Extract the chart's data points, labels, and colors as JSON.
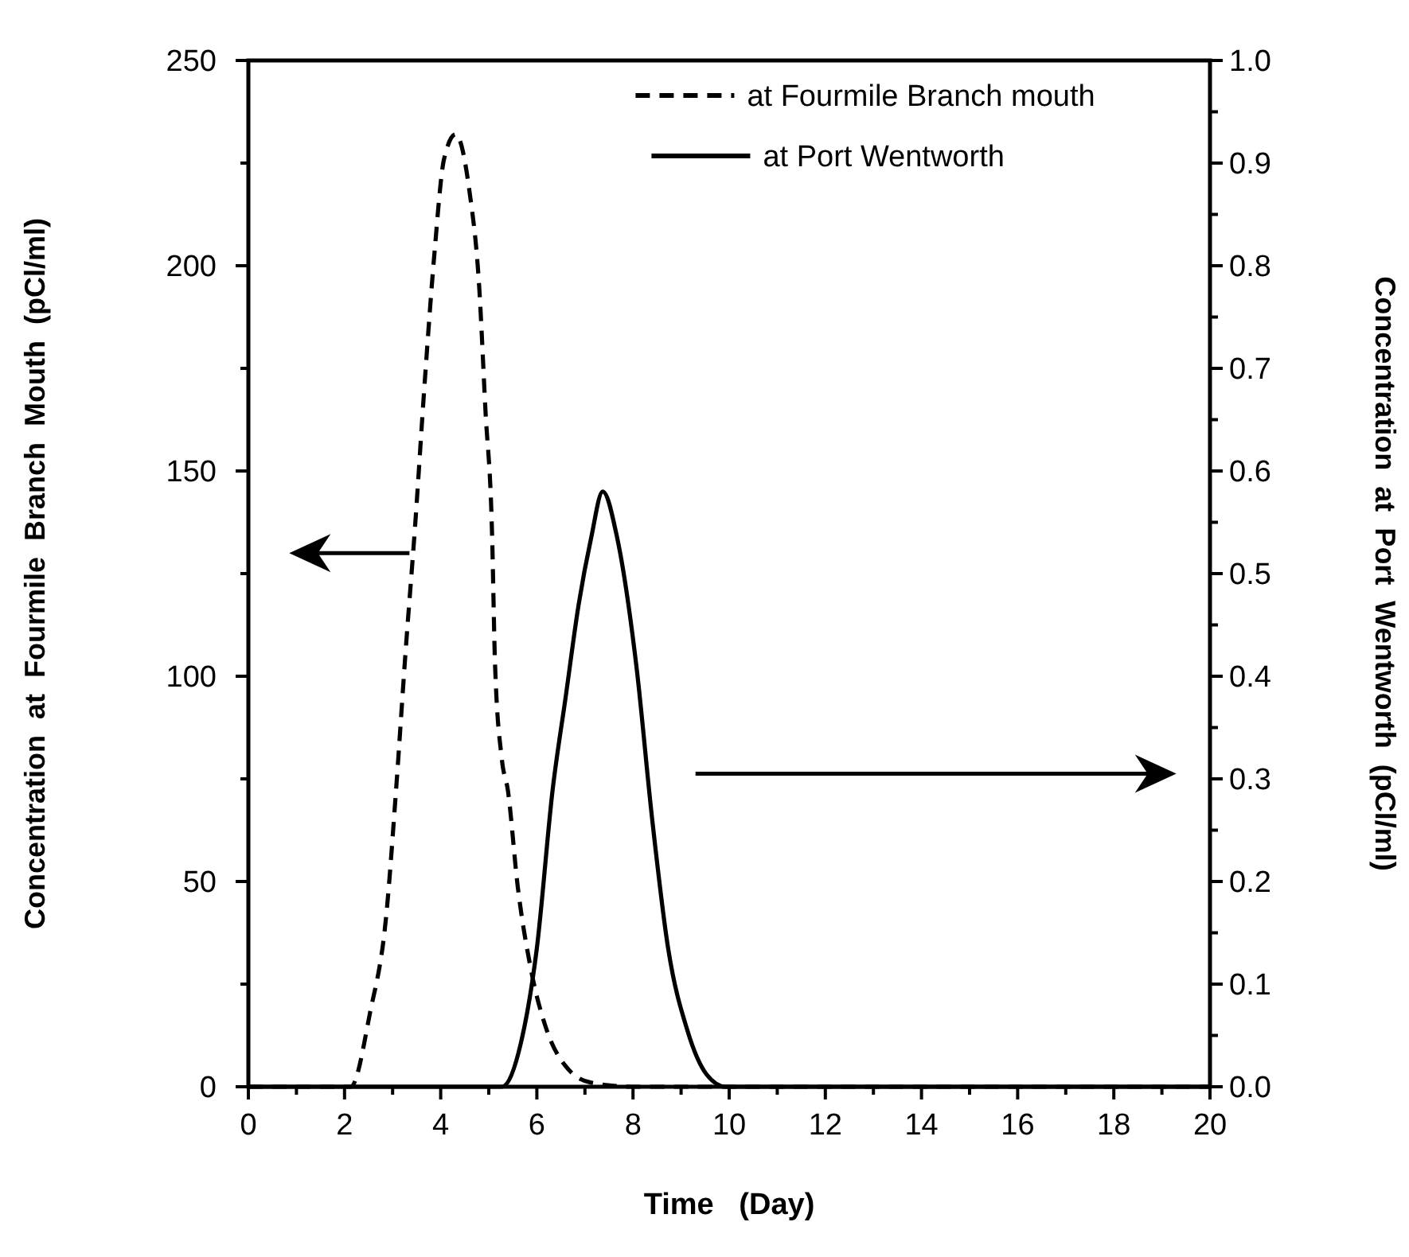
{
  "chart_data": {
    "type": "line",
    "xlabel": "Time   (Day)",
    "ylabel": "Concentration  at  Fourmile  Branch  Mouth  (pCl/ml)",
    "y2label": "Concentration  at  Port  Wentworth  (pCl/ml)",
    "xlim": [
      0,
      20
    ],
    "xticks": [
      0,
      {
        "value": 1,
        "label": null
      },
      2,
      {
        "value": 3,
        "label": null
      },
      4,
      {
        "value": 5,
        "label": null
      },
      6,
      {
        "value": 7,
        "label": null
      },
      8,
      {
        "value": 9,
        "label": null
      },
      10,
      {
        "value": 11,
        "label": null
      },
      12,
      {
        "value": 13,
        "label": null
      },
      14,
      {
        "value": 15,
        "label": null
      },
      16,
      {
        "value": 17,
        "label": null
      },
      18,
      {
        "value": 19,
        "label": null
      },
      20
    ],
    "ylim": [
      0,
      250
    ],
    "yticks": [
      0,
      {
        "value": 25,
        "label": null
      },
      50,
      {
        "value": 75,
        "label": null
      },
      100,
      {
        "value": 125,
        "label": null
      },
      150,
      {
        "value": 175,
        "label": null
      },
      200,
      {
        "value": 225,
        "label": null
      },
      250
    ],
    "y2lim": [
      0,
      1
    ],
    "y2ticks": [
      {
        "value": 0,
        "label": "0.0"
      },
      {
        "value": 0.05,
        "label": null
      },
      0.1,
      {
        "value": 0.15,
        "label": null
      },
      0.2,
      {
        "value": 0.25,
        "label": null
      },
      0.3,
      {
        "value": 0.35,
        "label": null
      },
      0.4,
      {
        "value": 0.45,
        "label": null
      },
      0.5,
      {
        "value": 0.55,
        "label": null
      },
      0.6,
      {
        "value": 0.65,
        "label": null
      },
      0.7,
      {
        "value": 0.75,
        "label": null
      },
      0.8,
      {
        "value": 0.85,
        "label": null
      },
      0.9,
      {
        "value": 0.95,
        "label": null
      },
      {
        "value": 1,
        "label": "1.0"
      }
    ],
    "legend": "top",
    "grid": false,
    "marker": "none",
    "series": [
      {
        "name": "at Fourmile Branch mouth",
        "color": "#000000",
        "line_style": "dashed",
        "x": [
          0,
          1,
          2.13,
          2.53,
          2.87,
          3.07,
          3.27,
          3.47,
          3.67,
          3.87,
          4.07,
          4.31,
          4.6,
          4.8,
          4.93,
          5.07,
          5.13,
          5.27,
          5.4,
          5.6,
          5.87,
          6.2,
          6.6,
          7.13,
          8,
          10,
          20
        ],
        "values": [
          0,
          0,
          0,
          18,
          42,
          72,
          106,
          137,
          172,
          203,
          226,
          232,
          218,
          195,
          165,
          134,
          103,
          80,
          72,
          49,
          29,
          14,
          5,
          1,
          0,
          0,
          0
        ]
      },
      {
        "name": "at Port Wentworth",
        "color": "#000000",
        "line_style": "solid",
        "axis": "y2",
        "x": [
          0,
          2,
          5.27,
          5.67,
          6.0,
          6.33,
          6.6,
          6.87,
          7.13,
          7.37,
          7.67,
          8.07,
          8.4,
          8.73,
          9.13,
          9.53,
          9.93,
          12,
          20
        ],
        "values": [
          0,
          0,
          0,
          0.043,
          0.135,
          0.29,
          0.38,
          0.47,
          0.535,
          0.58,
          0.535,
          0.41,
          0.26,
          0.135,
          0.055,
          0.012,
          0,
          0,
          0
        ]
      }
    ]
  }
}
